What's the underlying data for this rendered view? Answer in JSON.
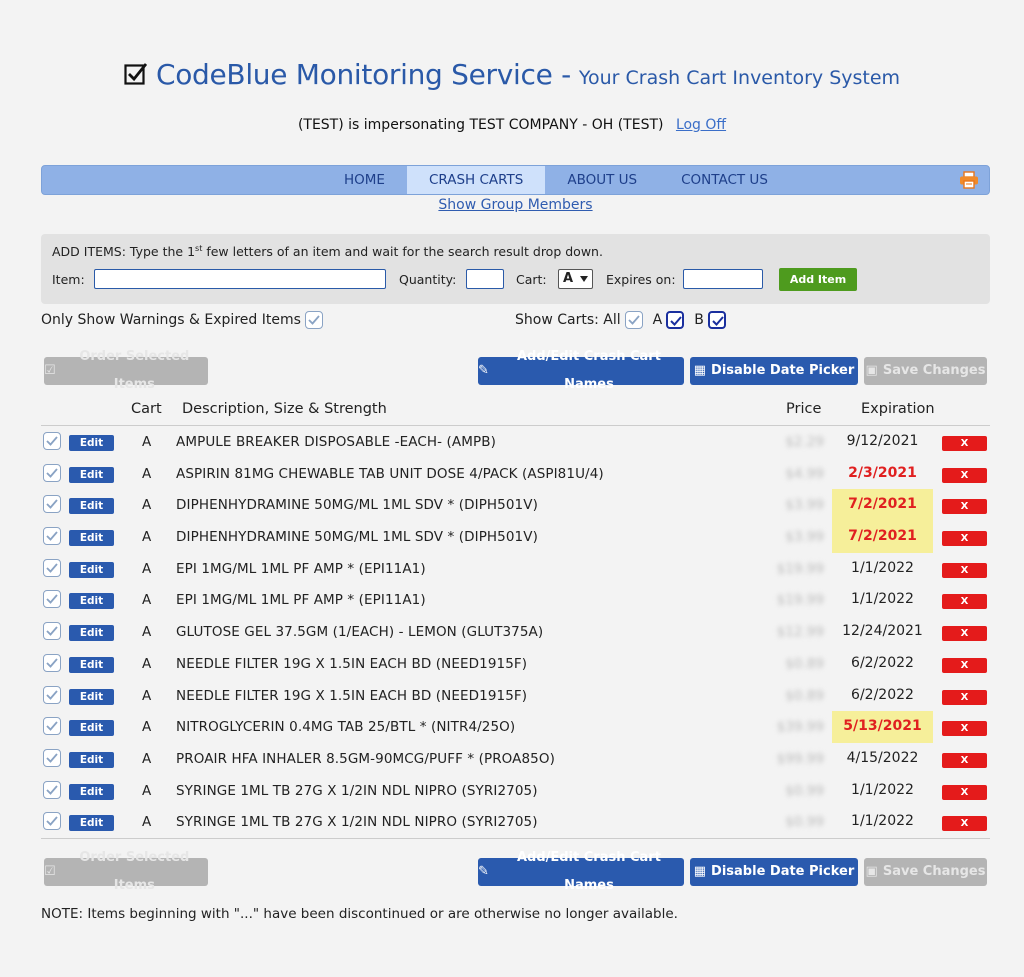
{
  "header": {
    "brand": "CodeBlue Monitoring Service -",
    "tagline": "Your Crash Cart Inventory System"
  },
  "impersonation": {
    "text": "(TEST) is impersonating TEST COMPANY - OH (TEST)",
    "logoff": "Log Off"
  },
  "nav": {
    "items": [
      "HOME",
      "CRASH CARTS",
      "ABOUT US",
      "CONTACT US"
    ],
    "active": "CRASH CARTS"
  },
  "show_group": "Show Group Members",
  "add_items": {
    "instruction_pre": "ADD ITEMS: Type the 1",
    "instruction_sup": "st",
    "instruction_post": " few letters of an item and wait for the search result drop down.",
    "item_label": "Item:",
    "item_value": "",
    "quantity_label": "Quantity:",
    "quantity_value": "",
    "cart_label": "Cart:",
    "cart_value": "A",
    "expires_label": "Expires on:",
    "expires_value": "",
    "add_button": "Add Item"
  },
  "filters": {
    "warnings_label": "Only Show Warnings & Expired Items",
    "show_carts_label": "Show Carts: All",
    "cart_a": "A",
    "cart_b": "B"
  },
  "toolbar": {
    "order": "Order Selected Items",
    "add_edit": "Add/Edit Crash Cart Names",
    "disable_date": "Disable Date Picker",
    "save": "Save Changes"
  },
  "table": {
    "headers": {
      "cart": "Cart",
      "description": "Description, Size & Strength",
      "price": "Price",
      "expiration": "Expiration"
    },
    "edit_label": "Edit",
    "delete_label": "X",
    "rows": [
      {
        "cart": "A",
        "description": "AMPULE BREAKER DISPOSABLE -EACH- (AMPB)",
        "price": "$2.29",
        "expiration": "9/12/2021",
        "status": "ok"
      },
      {
        "cart": "A",
        "description": "ASPIRIN 81MG CHEWABLE TAB UNIT DOSE 4/PACK (ASPI81U/4)",
        "price": "$4.99",
        "expiration": "2/3/2021",
        "status": "expired"
      },
      {
        "cart": "A",
        "description": "DIPHENHYDRAMINE 50MG/ML 1ML SDV * (DIPH501V)",
        "price": "$3.99",
        "expiration": "7/2/2021",
        "status": "warn"
      },
      {
        "cart": "A",
        "description": "DIPHENHYDRAMINE 50MG/ML 1ML SDV * (DIPH501V)",
        "price": "$3.99",
        "expiration": "7/2/2021",
        "status": "warn"
      },
      {
        "cart": "A",
        "description": "EPI 1MG/ML 1ML PF AMP * (EPI11A1)",
        "price": "$19.99",
        "expiration": "1/1/2022",
        "status": "ok"
      },
      {
        "cart": "A",
        "description": "EPI 1MG/ML 1ML PF AMP * (EPI11A1)",
        "price": "$19.99",
        "expiration": "1/1/2022",
        "status": "ok"
      },
      {
        "cart": "A",
        "description": "GLUTOSE GEL 37.5GM (1/EACH) - LEMON (GLUT375A)",
        "price": "$12.99",
        "expiration": "12/24/2021",
        "status": "ok"
      },
      {
        "cart": "A",
        "description": "NEEDLE FILTER 19G X 1.5IN EACH BD (NEED1915F)",
        "price": "$0.89",
        "expiration": "6/2/2022",
        "status": "ok"
      },
      {
        "cart": "A",
        "description": "NEEDLE FILTER 19G X 1.5IN EACH BD (NEED1915F)",
        "price": "$0.89",
        "expiration": "6/2/2022",
        "status": "ok"
      },
      {
        "cart": "A",
        "description": "NITROGLYCERIN 0.4MG TAB 25/BTL * (NITR4/25O)",
        "price": "$39.99",
        "expiration": "5/13/2021",
        "status": "warn"
      },
      {
        "cart": "A",
        "description": "PROAIR HFA INHALER 8.5GM-90MCG/PUFF * (PROA85O)",
        "price": "$99.99",
        "expiration": "4/15/2022",
        "status": "ok"
      },
      {
        "cart": "A",
        "description": "SYRINGE 1ML TB 27G X 1/2IN NDL NIPRO (SYRI2705)",
        "price": "$0.99",
        "expiration": "1/1/2022",
        "status": "ok"
      },
      {
        "cart": "A",
        "description": "SYRINGE 1ML TB 27G X 1/2IN NDL NIPRO (SYRI2705)",
        "price": "$0.99",
        "expiration": "1/1/2022",
        "status": "ok"
      }
    ]
  },
  "note": "NOTE: Items beginning with \"...\" have been discontinued or are otherwise no longer available.",
  "colors": {
    "brand": "#2a59a8",
    "nav_bg": "#8fb1e6",
    "nav_active": "#cfe1fb",
    "primary_button": "#2a5aae",
    "add_button": "#4e9b1e",
    "delete_button": "#e41b1b",
    "expired_text": "#e02020",
    "warn_bg": "#f6ef9a"
  }
}
